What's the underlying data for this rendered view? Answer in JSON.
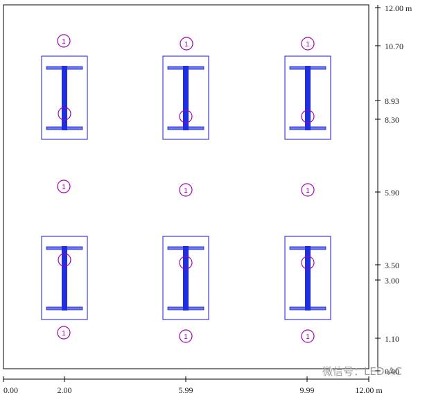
{
  "right_axis": {
    "labels": [
      "12.00 m",
      "10.70",
      "8.93",
      "8.30",
      "5.90",
      "3.50",
      "3.00",
      "1.10",
      "0.00"
    ]
  },
  "bottom_axis": {
    "labels": [
      "0.00",
      "2.00",
      "5.99",
      "9.99",
      "12.00 m"
    ]
  },
  "markers": {
    "labels": [
      "1",
      "1",
      "1",
      "1",
      "1",
      "1",
      "1",
      "1",
      "1"
    ]
  },
  "watermark": "微信号：LED-AC"
}
